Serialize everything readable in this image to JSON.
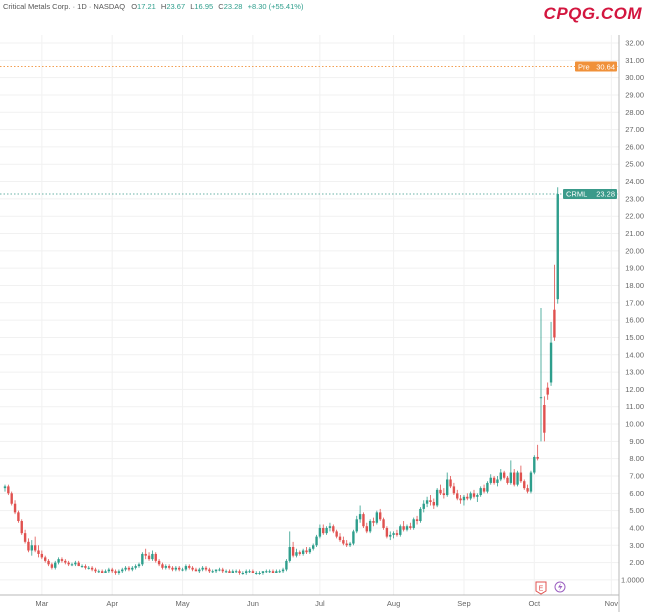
{
  "header": {
    "symbol_desc": "Critical Metals Corp. · 1D · NASDAQ",
    "open_label": "O",
    "open": "17.21",
    "high_label": "H",
    "high": "23.67",
    "low_label": "L",
    "low": "16.95",
    "close_label": "C",
    "close": "23.28",
    "change": "+8.30 (+55.41%)"
  },
  "watermark": "CPQG.COM",
  "colors": {
    "up": "#2e9e8c",
    "down": "#e0514f",
    "pre": "#f0913a",
    "last": "#3a9a8a",
    "logo": "#d3163f"
  },
  "markers": {
    "earnings_icon": "E",
    "split_icon": "lightning-icon"
  },
  "chart_data": {
    "type": "candlestick",
    "title": "",
    "ylim": [
      0.5,
      33
    ],
    "y_ticks": [
      "32.00",
      "31.00",
      "30.00",
      "29.00",
      "28.00",
      "27.00",
      "26.00",
      "25.00",
      "24.00",
      "23.00",
      "22.00",
      "21.00",
      "20.00",
      "19.00",
      "18.00",
      "17.00",
      "16.00",
      "15.00",
      "14.00",
      "13.00",
      "12.00",
      "11.00",
      "10.00",
      "9.00",
      "8.00",
      "7.00",
      "6.00",
      "5.00",
      "4.00",
      "3.00",
      "2.00",
      "1.0000"
    ],
    "x_ticks": [
      {
        "label": "Mar",
        "index": 11
      },
      {
        "label": "Apr",
        "index": 32
      },
      {
        "label": "May",
        "index": 53
      },
      {
        "label": "Jun",
        "index": 74
      },
      {
        "label": "Jul",
        "index": 94
      },
      {
        "label": "Aug",
        "index": 116
      },
      {
        "label": "Sep",
        "index": 137
      },
      {
        "label": "Oct",
        "index": 158
      },
      {
        "label": "Nov",
        "index": 181
      }
    ],
    "grid": true,
    "price_lines": [
      {
        "label": "Pre",
        "value": 30.64,
        "text": "30.64"
      },
      {
        "label": "CRML",
        "value": 23.28,
        "text": "23.28"
      }
    ],
    "ohlc": [
      [
        6.3,
        6.5,
        6.1,
        6.4
      ],
      [
        6.4,
        6.5,
        5.9,
        6.0
      ],
      [
        6.0,
        6.1,
        5.3,
        5.4
      ],
      [
        5.4,
        5.6,
        4.8,
        4.9
      ],
      [
        4.9,
        5.0,
        4.3,
        4.4
      ],
      [
        4.4,
        4.5,
        3.6,
        3.7
      ],
      [
        3.7,
        3.9,
        3.1,
        3.2
      ],
      [
        3.2,
        3.4,
        2.6,
        2.7
      ],
      [
        2.7,
        3.3,
        2.4,
        3.0
      ],
      [
        3.0,
        3.5,
        2.6,
        2.7
      ],
      [
        2.7,
        3.0,
        2.3,
        2.5
      ],
      [
        2.5,
        2.7,
        2.2,
        2.3
      ],
      [
        2.3,
        2.4,
        2.0,
        2.1
      ],
      [
        2.1,
        2.2,
        1.8,
        1.9
      ],
      [
        1.9,
        2.0,
        1.6,
        1.7
      ],
      [
        1.7,
        2.1,
        1.6,
        2.0
      ],
      [
        2.0,
        2.3,
        1.9,
        2.2
      ],
      [
        2.2,
        2.3,
        2.0,
        2.1
      ],
      [
        2.1,
        2.2,
        1.9,
        2.0
      ],
      [
        2.0,
        2.1,
        1.8,
        1.9
      ],
      [
        1.9,
        2.0,
        1.8,
        1.9
      ],
      [
        1.9,
        2.1,
        1.8,
        2.0
      ],
      [
        2.0,
        2.1,
        1.8,
        1.8
      ],
      [
        1.8,
        1.9,
        1.7,
        1.8
      ],
      [
        1.8,
        1.9,
        1.6,
        1.7
      ],
      [
        1.7,
        1.8,
        1.6,
        1.7
      ],
      [
        1.7,
        1.8,
        1.5,
        1.6
      ],
      [
        1.6,
        1.7,
        1.4,
        1.5
      ],
      [
        1.5,
        1.6,
        1.4,
        1.5
      ],
      [
        1.5,
        1.6,
        1.4,
        1.4
      ],
      [
        1.4,
        1.6,
        1.4,
        1.5
      ],
      [
        1.5,
        1.7,
        1.4,
        1.6
      ],
      [
        1.6,
        1.7,
        1.4,
        1.5
      ],
      [
        1.5,
        1.6,
        1.3,
        1.4
      ],
      [
        1.4,
        1.6,
        1.3,
        1.5
      ],
      [
        1.5,
        1.7,
        1.4,
        1.6
      ],
      [
        1.6,
        1.8,
        1.5,
        1.7
      ],
      [
        1.7,
        1.8,
        1.5,
        1.6
      ],
      [
        1.6,
        1.8,
        1.5,
        1.7
      ],
      [
        1.7,
        1.9,
        1.6,
        1.8
      ],
      [
        1.8,
        2.0,
        1.7,
        1.9
      ],
      [
        1.9,
        2.6,
        1.8,
        2.5
      ],
      [
        2.5,
        2.8,
        2.2,
        2.4
      ],
      [
        2.4,
        2.6,
        2.1,
        2.2
      ],
      [
        2.2,
        2.7,
        2.1,
        2.5
      ],
      [
        2.5,
        2.6,
        2.0,
        2.1
      ],
      [
        2.1,
        2.2,
        1.8,
        1.9
      ],
      [
        1.9,
        2.0,
        1.6,
        1.7
      ],
      [
        1.7,
        1.9,
        1.6,
        1.8
      ],
      [
        1.8,
        1.9,
        1.6,
        1.7
      ],
      [
        1.7,
        1.8,
        1.5,
        1.6
      ],
      [
        1.6,
        1.8,
        1.5,
        1.7
      ],
      [
        1.7,
        1.8,
        1.5,
        1.6
      ],
      [
        1.6,
        1.7,
        1.5,
        1.6
      ],
      [
        1.6,
        1.9,
        1.5,
        1.8
      ],
      [
        1.8,
        1.9,
        1.6,
        1.7
      ],
      [
        1.7,
        1.8,
        1.5,
        1.6
      ],
      [
        1.6,
        1.7,
        1.5,
        1.5
      ],
      [
        1.5,
        1.7,
        1.4,
        1.6
      ],
      [
        1.6,
        1.8,
        1.5,
        1.7
      ],
      [
        1.7,
        1.8,
        1.5,
        1.6
      ],
      [
        1.6,
        1.7,
        1.4,
        1.5
      ],
      [
        1.5,
        1.6,
        1.4,
        1.5
      ],
      [
        1.5,
        1.6,
        1.4,
        1.6
      ],
      [
        1.6,
        1.7,
        1.5,
        1.6
      ],
      [
        1.6,
        1.7,
        1.4,
        1.5
      ],
      [
        1.5,
        1.6,
        1.4,
        1.5
      ],
      [
        1.5,
        1.6,
        1.4,
        1.4
      ],
      [
        1.4,
        1.6,
        1.4,
        1.5
      ],
      [
        1.5,
        1.6,
        1.4,
        1.5
      ],
      [
        1.5,
        1.6,
        1.3,
        1.4
      ],
      [
        1.4,
        1.5,
        1.3,
        1.4
      ],
      [
        1.4,
        1.6,
        1.3,
        1.5
      ],
      [
        1.5,
        1.6,
        1.4,
        1.5
      ],
      [
        1.5,
        1.6,
        1.4,
        1.4
      ],
      [
        1.4,
        1.5,
        1.3,
        1.4
      ],
      [
        1.4,
        1.5,
        1.3,
        1.4
      ],
      [
        1.4,
        1.5,
        1.3,
        1.5
      ],
      [
        1.5,
        1.6,
        1.4,
        1.5
      ],
      [
        1.5,
        1.6,
        1.4,
        1.5
      ],
      [
        1.5,
        1.6,
        1.4,
        1.4
      ],
      [
        1.4,
        1.6,
        1.4,
        1.5
      ],
      [
        1.5,
        1.6,
        1.4,
        1.5
      ],
      [
        1.5,
        1.7,
        1.4,
        1.6
      ],
      [
        1.6,
        2.2,
        1.5,
        2.1
      ],
      [
        2.1,
        3.8,
        2.0,
        2.9
      ],
      [
        2.9,
        3.2,
        2.3,
        2.4
      ],
      [
        2.4,
        2.8,
        2.3,
        2.6
      ],
      [
        2.6,
        2.7,
        2.4,
        2.5
      ],
      [
        2.5,
        2.8,
        2.4,
        2.7
      ],
      [
        2.7,
        2.9,
        2.5,
        2.6
      ],
      [
        2.6,
        2.9,
        2.5,
        2.8
      ],
      [
        2.8,
        3.1,
        2.7,
        3.0
      ],
      [
        3.0,
        3.6,
        2.9,
        3.5
      ],
      [
        3.5,
        4.2,
        3.4,
        4.0
      ],
      [
        4.0,
        4.2,
        3.6,
        3.7
      ],
      [
        3.7,
        4.1,
        3.6,
        4.0
      ],
      [
        4.0,
        4.3,
        3.8,
        4.1
      ],
      [
        4.1,
        4.2,
        3.7,
        3.8
      ],
      [
        3.8,
        3.9,
        3.4,
        3.5
      ],
      [
        3.5,
        3.7,
        3.2,
        3.3
      ],
      [
        3.3,
        3.5,
        3.0,
        3.1
      ],
      [
        3.1,
        3.3,
        2.9,
        3.0
      ],
      [
        3.0,
        3.2,
        2.9,
        3.1
      ],
      [
        3.1,
        3.9,
        3.0,
        3.8
      ],
      [
        3.8,
        4.7,
        3.7,
        4.5
      ],
      [
        4.5,
        5.3,
        4.3,
        4.8
      ],
      [
        4.8,
        4.9,
        4.0,
        4.1
      ],
      [
        4.1,
        4.3,
        3.7,
        3.8
      ],
      [
        3.8,
        4.5,
        3.7,
        4.4
      ],
      [
        4.4,
        4.6,
        4.1,
        4.3
      ],
      [
        4.3,
        5.0,
        4.2,
        4.9
      ],
      [
        4.9,
        5.1,
        4.4,
        4.5
      ],
      [
        4.5,
        4.6,
        3.9,
        4.0
      ],
      [
        4.0,
        4.1,
        3.4,
        3.5
      ],
      [
        3.5,
        3.8,
        3.3,
        3.6
      ],
      [
        3.6,
        3.8,
        3.4,
        3.7
      ],
      [
        3.7,
        3.9,
        3.5,
        3.6
      ],
      [
        3.6,
        4.2,
        3.5,
        4.1
      ],
      [
        4.1,
        4.4,
        3.8,
        3.9
      ],
      [
        3.9,
        4.2,
        3.8,
        4.1
      ],
      [
        4.1,
        4.3,
        3.9,
        4.0
      ],
      [
        4.0,
        4.6,
        3.9,
        4.5
      ],
      [
        4.5,
        4.7,
        4.2,
        4.4
      ],
      [
        4.4,
        5.2,
        4.3,
        5.1
      ],
      [
        5.1,
        5.6,
        4.9,
        5.4
      ],
      [
        5.4,
        5.8,
        5.2,
        5.6
      ],
      [
        5.6,
        5.9,
        5.3,
        5.5
      ],
      [
        5.5,
        5.7,
        5.1,
        5.3
      ],
      [
        5.3,
        6.3,
        5.2,
        6.2
      ],
      [
        6.2,
        6.5,
        5.9,
        6.0
      ],
      [
        6.0,
        6.3,
        5.7,
        5.9
      ],
      [
        5.9,
        7.2,
        5.8,
        6.8
      ],
      [
        6.8,
        7.0,
        6.3,
        6.4
      ],
      [
        6.4,
        6.6,
        5.9,
        6.0
      ],
      [
        6.0,
        6.2,
        5.6,
        5.7
      ],
      [
        5.7,
        5.9,
        5.4,
        5.6
      ],
      [
        5.6,
        5.9,
        5.3,
        5.8
      ],
      [
        5.8,
        6.0,
        5.6,
        5.7
      ],
      [
        5.7,
        6.1,
        5.6,
        6.0
      ],
      [
        6.0,
        6.2,
        5.7,
        5.8
      ],
      [
        5.8,
        6.0,
        5.5,
        5.9
      ],
      [
        5.9,
        6.4,
        5.8,
        6.3
      ],
      [
        6.3,
        6.5,
        6.0,
        6.1
      ],
      [
        6.1,
        6.7,
        6.0,
        6.6
      ],
      [
        6.6,
        7.1,
        6.5,
        6.9
      ],
      [
        6.9,
        7.0,
        6.5,
        6.6
      ],
      [
        6.6,
        7.0,
        6.4,
        6.8
      ],
      [
        6.8,
        7.4,
        6.7,
        7.2
      ],
      [
        7.2,
        7.3,
        6.8,
        6.9
      ],
      [
        6.9,
        7.0,
        6.5,
        6.6
      ],
      [
        6.6,
        7.9,
        6.5,
        7.2
      ],
      [
        7.2,
        7.4,
        6.4,
        6.5
      ],
      [
        6.5,
        7.3,
        6.4,
        7.2
      ],
      [
        7.2,
        7.6,
        6.6,
        6.7
      ],
      [
        6.7,
        6.8,
        6.2,
        6.3
      ],
      [
        6.3,
        6.5,
        6.0,
        6.1
      ],
      [
        6.1,
        7.3,
        6.0,
        7.2
      ],
      [
        7.2,
        8.2,
        7.1,
        8.1
      ],
      [
        8.1,
        8.8,
        7.9,
        8.0
      ],
      [
        11.5,
        16.7,
        9.0,
        11.55
      ],
      [
        11.1,
        11.6,
        9.0,
        9.5
      ],
      [
        12.1,
        12.4,
        11.4,
        11.7
      ],
      [
        12.4,
        15.9,
        12.2,
        14.7
      ],
      [
        16.6,
        19.2,
        14.8,
        15.0
      ],
      [
        17.21,
        23.67,
        16.95,
        23.28
      ]
    ]
  }
}
